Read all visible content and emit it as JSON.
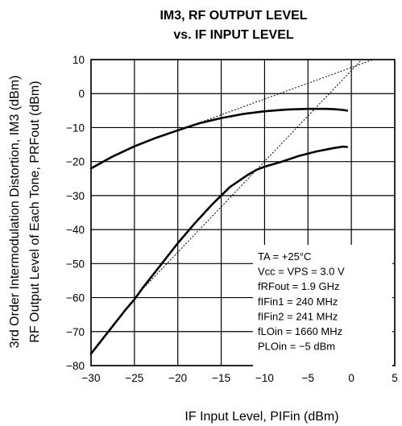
{
  "chart_data": {
    "type": "line",
    "title_line1": "IM3, RF OUTPUT LEVEL",
    "title_line2": "vs. IF INPUT LEVEL",
    "xlabel": "IF Input Level, PIFin (dBm)",
    "ylabel_line1": "3rd Order Intermodulation Distortion, IM3 (dBm)",
    "ylabel_line2": "RF Output Level of Each Tone, PRFout (dBm)",
    "xlim": [
      -30,
      5
    ],
    "ylim": [
      -80,
      10
    ],
    "x_ticks": [
      -30,
      -25,
      -20,
      -15,
      -10,
      -5,
      0,
      5
    ],
    "y_ticks": [
      10,
      0,
      -10,
      -20,
      -30,
      -40,
      -50,
      -60,
      -70,
      -80
    ],
    "x_tick_labels": [
      "−30",
      "−25",
      "−20",
      "−15",
      "−10",
      "−5",
      "0",
      "5"
    ],
    "y_tick_labels": [
      "10",
      "0",
      "−10",
      "−20",
      "−30",
      "−40",
      "−50",
      "−60",
      "−70",
      "−80"
    ],
    "grid": true,
    "series": [
      {
        "style": "solid",
        "x": [
          -30,
          -27.5,
          -25,
          -22.5,
          -20,
          -17.5,
          -15,
          -12.5,
          -10,
          -7.5,
          -5,
          -3,
          -2,
          -1,
          -0.5
        ],
        "y": [
          -22,
          -18.5,
          -15.5,
          -13,
          -10.8,
          -8.7,
          -7.2,
          -6,
          -5.2,
          -4.7,
          -4.5,
          -4.5,
          -4.6,
          -4.8,
          -5
        ]
      },
      {
        "style": "solid",
        "x": [
          -30,
          -28,
          -26,
          -25,
          -24,
          -22,
          -20,
          -18,
          -16,
          -14,
          -12,
          -11,
          -10,
          -8,
          -6,
          -4,
          -2,
          -1,
          -0.5
        ],
        "y": [
          -76.5,
          -70,
          -63.5,
          -60.5,
          -57,
          -50.5,
          -44,
          -38,
          -32.5,
          -27.5,
          -24,
          -22.5,
          -21.5,
          -20,
          -18.3,
          -17,
          -16,
          -15.6,
          -15.7
        ]
      },
      {
        "style": "dotted",
        "x": [
          -25,
          2.5
        ],
        "y": [
          -15.5,
          10
        ]
      },
      {
        "style": "dotted",
        "x": [
          -25,
          1.2
        ],
        "y": [
          -60,
          10
        ]
      }
    ],
    "conditions": [
      "TA = +25°C",
      "Vcc = VPS = 3.0 V",
      "fRFout  = 1.9 GHz",
      "fIFin1 = 240 MHz",
      "fIFin2 = 241 MHz",
      "fLOin = 1660 MHz",
      "PLOin = −5 dBm"
    ]
  }
}
